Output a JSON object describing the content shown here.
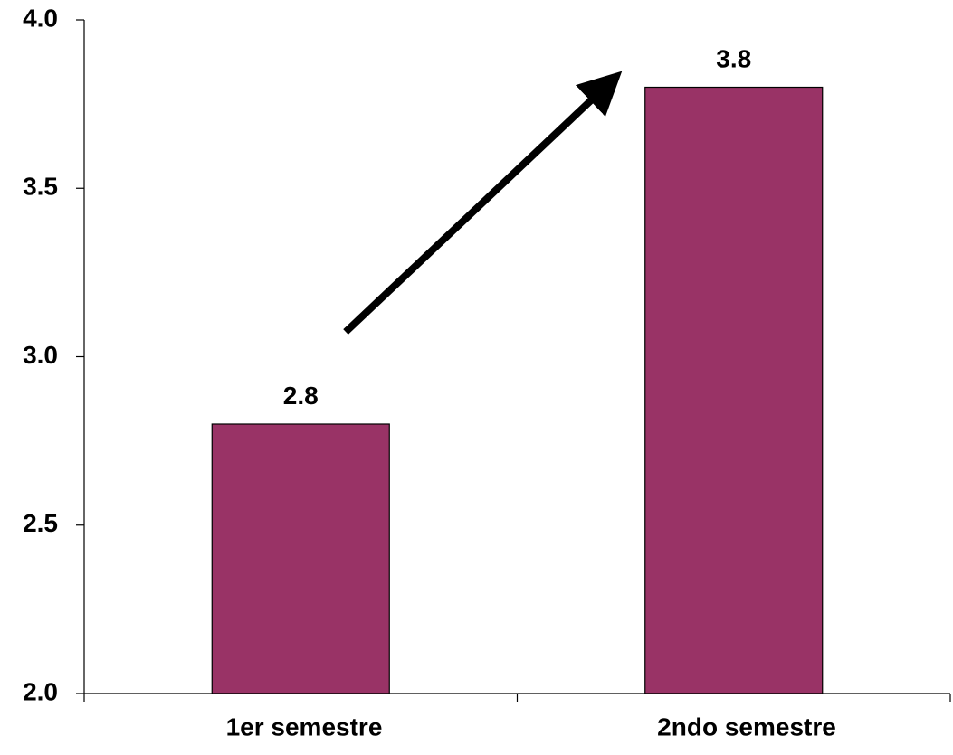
{
  "chart_data": {
    "type": "bar",
    "categories": [
      "1er semestre",
      "2ndo semestre"
    ],
    "values": [
      2.8,
      3.8
    ],
    "value_labels": [
      "2.8",
      "3.8"
    ],
    "ylim": [
      2.0,
      4.0
    ],
    "yticks": [
      2.0,
      2.5,
      3.0,
      3.5,
      4.0
    ],
    "ytick_labels": [
      "2.0",
      "2.5",
      "3.0",
      "3.5",
      "4.0"
    ],
    "grid": false,
    "bar_color": "#993366",
    "annotation": "upward-arrow"
  }
}
